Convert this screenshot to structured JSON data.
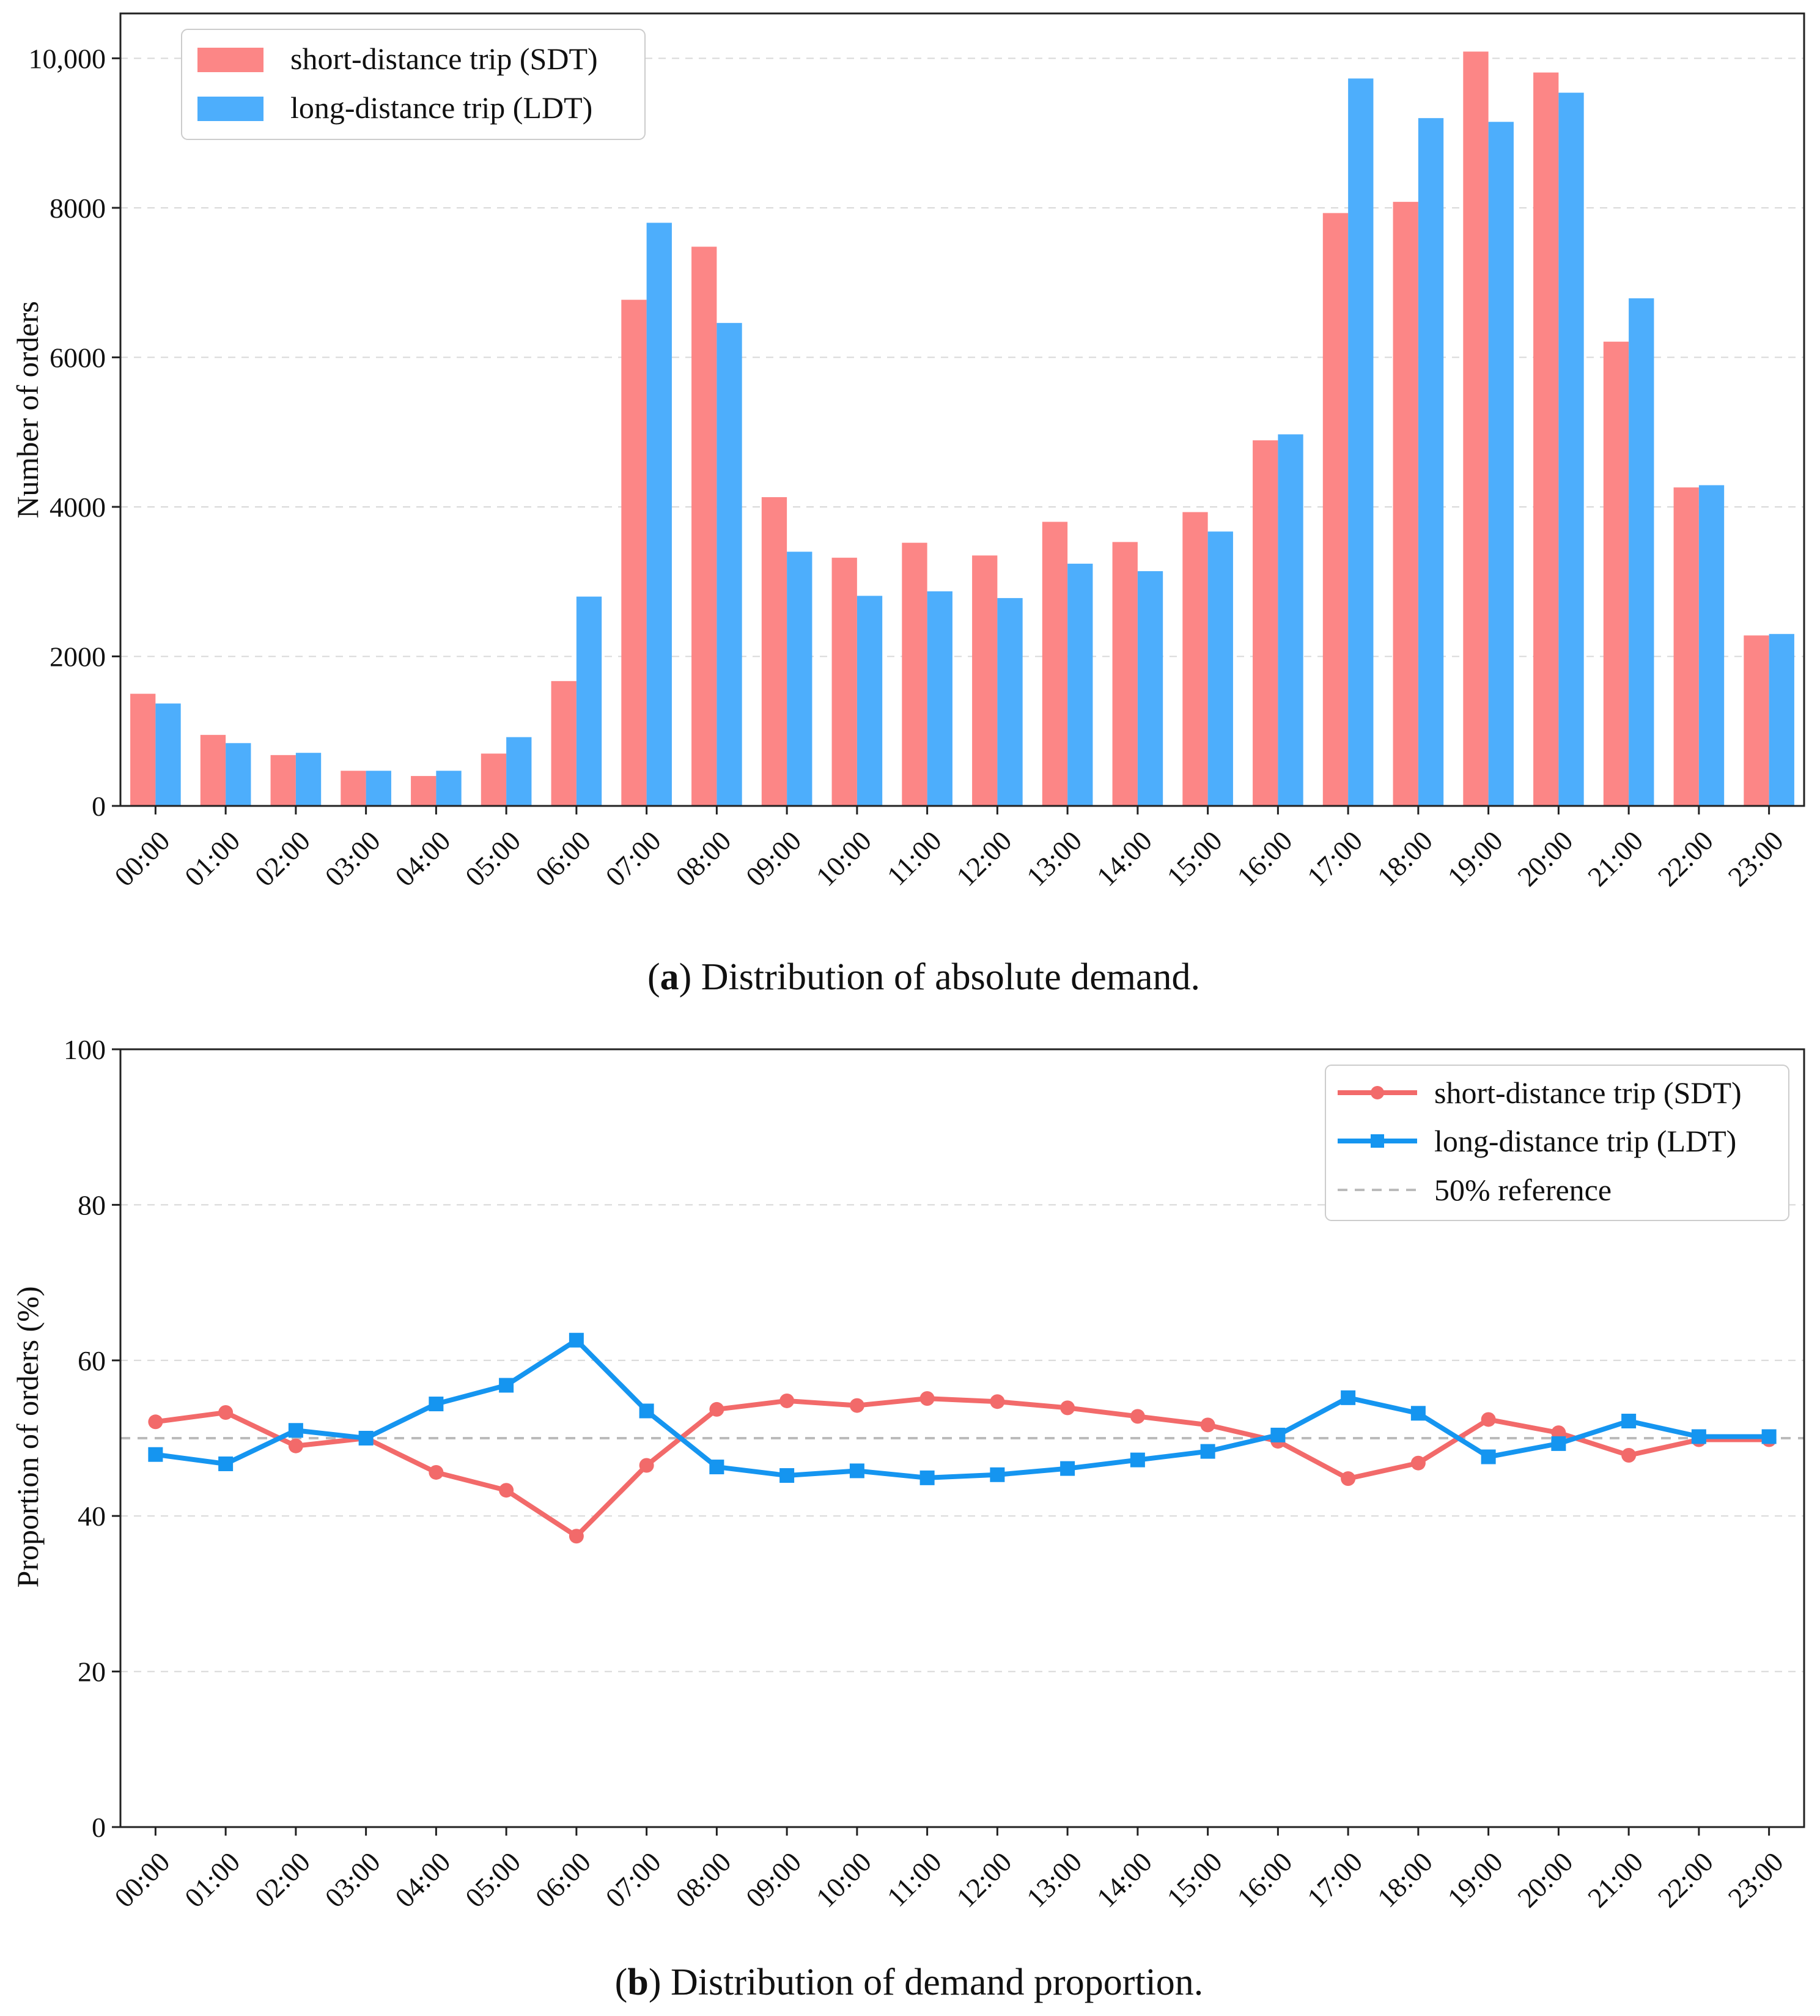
{
  "charts": [
    {
      "chart_data": {
        "type": "bar",
        "categories": [
          "00:00",
          "01:00",
          "02:00",
          "03:00",
          "04:00",
          "05:00",
          "06:00",
          "07:00",
          "08:00",
          "09:00",
          "10:00",
          "11:00",
          "12:00",
          "13:00",
          "14:00",
          "15:00",
          "16:00",
          "17:00",
          "18:00",
          "19:00",
          "20:00",
          "21:00",
          "22:00",
          "23:00"
        ],
        "series": [
          {
            "name": "short-distance trip (SDT)",
            "color": "#fc8686",
            "values": [
              1500,
              950,
              680,
              470,
              400,
              700,
              1670,
              6770,
              7480,
              4130,
              3320,
              3520,
              3350,
              3800,
              3530,
              3930,
              4890,
              7930,
              8080,
              10090,
              9810,
              6210,
              4260,
              2280
            ]
          },
          {
            "name": "long-distance trip (LDT)",
            "color": "#4daefc",
            "values": [
              1370,
              840,
              710,
              470,
              470,
              920,
              2800,
              7800,
              6460,
              3400,
              2810,
              2870,
              2780,
              3240,
              3140,
              3670,
              4970,
              9730,
              9200,
              9150,
              9540,
              6790,
              4290,
              2300
            ]
          }
        ],
        "xlabel": "",
        "ylabel": "Number of orders",
        "ylim": [
          0,
          10600
        ],
        "yticks": [
          0,
          2000,
          4000,
          6000,
          8000,
          10000
        ],
        "ytick_labels": [
          "0",
          "2000",
          "4000",
          "6000",
          "8000",
          "10,000"
        ],
        "grid": true,
        "legend_position": "top-left"
      },
      "caption": {
        "letter": "a",
        "open": "(",
        "close": ")",
        "text": " Distribution of absolute demand."
      }
    },
    {
      "chart_data": {
        "type": "line",
        "categories": [
          "00:00",
          "01:00",
          "02:00",
          "03:00",
          "04:00",
          "05:00",
          "06:00",
          "07:00",
          "08:00",
          "09:00",
          "10:00",
          "11:00",
          "12:00",
          "13:00",
          "14:00",
          "15:00",
          "16:00",
          "17:00",
          "18:00",
          "19:00",
          "20:00",
          "21:00",
          "22:00",
          "23:00"
        ],
        "series": [
          {
            "name": "short-distance trip (SDT)",
            "color": "#f26a6a",
            "marker": "circle",
            "values": [
              52.1,
              53.3,
              49.0,
              50.0,
              45.6,
              43.3,
              37.4,
              46.5,
              53.7,
              54.8,
              54.2,
              55.1,
              54.7,
              53.9,
              52.8,
              51.7,
              49.6,
              44.8,
              46.8,
              52.4,
              50.7,
              47.8,
              49.8,
              49.8
            ]
          },
          {
            "name": "long-distance trip (LDT)",
            "color": "#1595f0",
            "marker": "square",
            "values": [
              47.9,
              46.7,
              51.0,
              50.0,
              54.4,
              56.8,
              62.6,
              53.5,
              46.3,
              45.2,
              45.8,
              44.9,
              45.3,
              46.1,
              47.2,
              48.3,
              50.4,
              55.2,
              53.2,
              47.6,
              49.3,
              52.2,
              50.2,
              50.2
            ]
          }
        ],
        "reference_line": {
          "value": 50,
          "label": "50% reference",
          "color": "#bbbbbb"
        },
        "xlabel": "",
        "ylabel": "Proportion of orders (%)",
        "ylim": [
          0,
          100
        ],
        "yticks": [
          0,
          20,
          40,
          60,
          80,
          100
        ],
        "ytick_labels": [
          "0",
          "20",
          "40",
          "60",
          "80",
          "100"
        ],
        "grid": true,
        "legend_position": "top-right"
      },
      "caption": {
        "letter": "b",
        "open": "(",
        "close": ")",
        "text": " Distribution of demand proportion."
      }
    }
  ]
}
